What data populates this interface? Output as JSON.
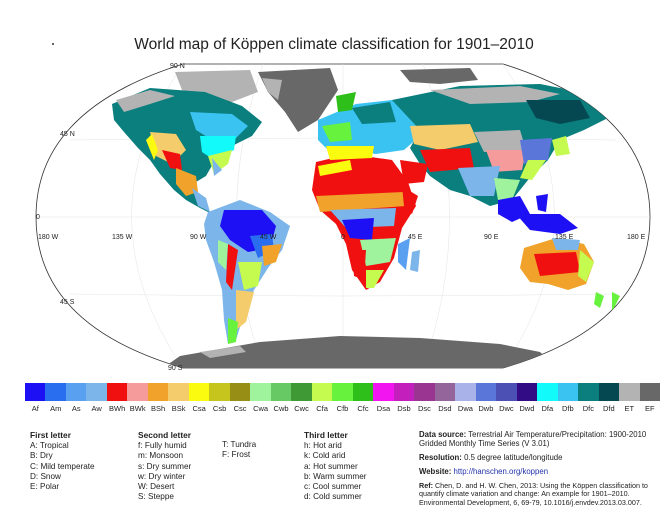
{
  "title": "World map of Köppen climate classification for 1901–2010",
  "map": {
    "latitude_labels": [
      "90 N",
      "45 N",
      "0",
      "45 S",
      "90 S"
    ],
    "longitude_labels": [
      "180 W",
      "135 W",
      "90 W",
      "45 W",
      "0",
      "45 E",
      "90 E",
      "135 E",
      "180 E"
    ]
  },
  "legend": [
    {
      "code": "Af",
      "color": "#1d10f5"
    },
    {
      "code": "Am",
      "color": "#2a6ef0"
    },
    {
      "code": "As",
      "color": "#5aa0f0"
    },
    {
      "code": "Aw",
      "color": "#7bb5ea"
    },
    {
      "code": "BWh",
      "color": "#f01010"
    },
    {
      "code": "BWk",
      "color": "#f59b9b"
    },
    {
      "code": "BSh",
      "color": "#f0a22b"
    },
    {
      "code": "BSk",
      "color": "#f4cc6b"
    },
    {
      "code": "Csa",
      "color": "#fbfb10"
    },
    {
      "code": "Csb",
      "color": "#c6c51e"
    },
    {
      "code": "Csc",
      "color": "#978f15"
    },
    {
      "code": "Cwa",
      "color": "#9ff39c"
    },
    {
      "code": "Cwb",
      "color": "#67c964"
    },
    {
      "code": "Cwc",
      "color": "#3f9a36"
    },
    {
      "code": "Cfa",
      "color": "#c5fa4f"
    },
    {
      "code": "Cfb",
      "color": "#66f23d"
    },
    {
      "code": "Cfc",
      "color": "#2fbf1a"
    },
    {
      "code": "Dsa",
      "color": "#f315f0"
    },
    {
      "code": "Dsb",
      "color": "#c21fbc"
    },
    {
      "code": "Dsc",
      "color": "#9a3592"
    },
    {
      "code": "Dsd",
      "color": "#94659a"
    },
    {
      "code": "Dwa",
      "color": "#a9b3e9"
    },
    {
      "code": "Dwb",
      "color": "#5a76d8"
    },
    {
      "code": "Dwc",
      "color": "#4c4fb4"
    },
    {
      "code": "Dwd",
      "color": "#320c85"
    },
    {
      "code": "Dfa",
      "color": "#12fafa"
    },
    {
      "code": "Dfb",
      "color": "#3ac2f0"
    },
    {
      "code": "Dfc",
      "color": "#0b7e7e"
    },
    {
      "code": "Dfd",
      "color": "#054852"
    },
    {
      "code": "ET",
      "color": "#b3b3b3"
    },
    {
      "code": "EF",
      "color": "#686868"
    }
  ],
  "first_letter": {
    "heading": "First letter",
    "items": [
      "A: Tropical",
      "B: Dry",
      "C: Mild temperate",
      "D: Snow",
      "E: Polar"
    ]
  },
  "second_letter": {
    "heading": "Second letter",
    "items": [
      "f:  Fully humid",
      "m: Monsoon",
      "s:  Dry summer",
      "w: Dry winter",
      "W: Desert",
      "S: Steppe"
    ],
    "items_extra": [
      "T:  Tundra",
      "F:  Frost"
    ]
  },
  "third_letter": {
    "heading": "Third letter",
    "items": [
      "h:  Hot arid",
      "k:  Cold arid",
      "a:  Hot summer",
      "b:  Warm summer",
      "c:  Cool summer",
      "d:  Cold summer"
    ]
  },
  "source": {
    "data_label": "Data source:",
    "data_text": "Terrestrial Air Temperature/Precipitation: 1900-2010 Gridded Monthly Time Series (V 3.01)",
    "resolution_label": "Resolution:",
    "resolution_text": "0.5 degree latitude/longitude",
    "website_label": "Website:",
    "website_text": "http://hanschen.org/koppen",
    "ref_label": "Ref:",
    "ref_text": "Chen, D. and H. W. Chen, 2013: Using the Köppen classification to quantify climate variation and change: An example for 1901–2010. Environmental Development, 6, 69-79, 10.1016/j.envdev.2013.03.007."
  }
}
